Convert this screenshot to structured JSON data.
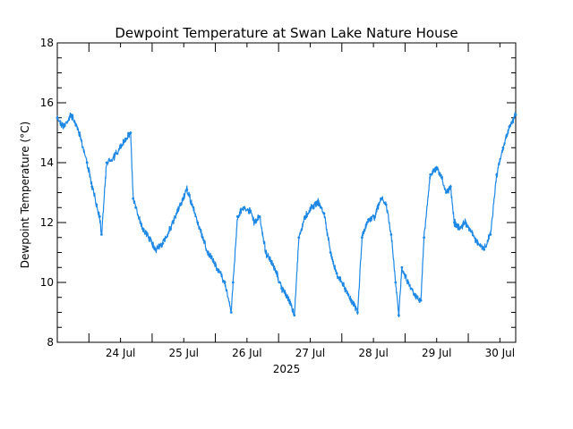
{
  "chart_data": {
    "type": "line",
    "title": "Dewpoint Temperature at Swan Lake Nature House",
    "xlabel": "2025",
    "ylabel": "Dewpoint Temperature (°C)",
    "ylim": [
      8,
      18
    ],
    "y_ticks": [
      "8",
      "10",
      "12",
      "14",
      "16",
      "18"
    ],
    "x_ticks": [
      {
        "day": 24,
        "label": "24 Jul"
      },
      {
        "day": 25,
        "label": "25 Jul"
      },
      {
        "day": 26,
        "label": "26 Jul"
      },
      {
        "day": 27,
        "label": "27 Jul"
      },
      {
        "day": 28,
        "label": "28 Jul"
      },
      {
        "day": 29,
        "label": "29 Jul"
      },
      {
        "day": 30,
        "label": "30 Jul"
      }
    ],
    "xlim_days": [
      23.5,
      30.75
    ],
    "series_color": "#1e88e5",
    "series": [
      {
        "x_day": [
          23.5,
          23.6,
          23.72,
          23.85,
          23.97,
          24.05,
          24.12,
          24.17,
          24.2,
          24.28,
          24.4,
          24.5,
          24.58,
          24.66,
          24.7,
          24.74,
          24.85,
          24.95,
          25.05,
          25.17,
          25.33,
          25.45,
          25.55,
          25.63,
          25.72,
          25.8,
          25.88,
          25.97,
          26.05,
          26.15,
          26.25,
          26.28,
          26.35,
          26.45,
          26.55,
          26.62,
          26.7,
          26.8,
          26.9,
          26.97,
          27.05,
          27.15,
          27.25,
          27.32,
          27.42,
          27.52,
          27.62,
          27.72,
          27.82,
          27.92,
          28.05,
          28.15,
          28.25,
          28.32,
          28.42,
          28.52,
          28.62,
          28.7,
          28.78,
          28.85,
          28.9,
          28.95,
          29.05,
          29.15,
          29.25,
          29.3,
          29.4,
          29.5,
          29.58,
          29.65,
          29.72,
          29.78,
          29.85,
          29.95,
          30.05,
          30.15,
          30.25,
          30.35,
          30.45,
          30.55,
          30.65,
          30.75
        ],
        "y": [
          15.5,
          15.2,
          15.6,
          15.0,
          14.0,
          13.2,
          12.6,
          12.2,
          11.6,
          14.0,
          14.2,
          14.5,
          14.8,
          15.0,
          12.8,
          12.5,
          11.8,
          11.5,
          11.1,
          11.3,
          12.0,
          12.6,
          13.1,
          12.6,
          12.0,
          11.5,
          11.0,
          10.7,
          10.4,
          10.0,
          9.0,
          10.0,
          12.2,
          12.5,
          12.4,
          12.0,
          12.2,
          11.0,
          10.6,
          10.3,
          9.8,
          9.5,
          8.9,
          11.5,
          12.2,
          12.5,
          12.7,
          12.3,
          11.0,
          10.3,
          9.8,
          9.4,
          9.0,
          11.5,
          12.1,
          12.2,
          12.8,
          12.6,
          11.6,
          10.0,
          8.9,
          10.5,
          10.0,
          9.6,
          9.4,
          11.5,
          13.6,
          13.8,
          13.5,
          13.0,
          13.2,
          12.0,
          11.8,
          12.0,
          11.7,
          11.3,
          11.1,
          11.6,
          13.6,
          14.5,
          15.2,
          15.6
        ]
      }
    ]
  }
}
